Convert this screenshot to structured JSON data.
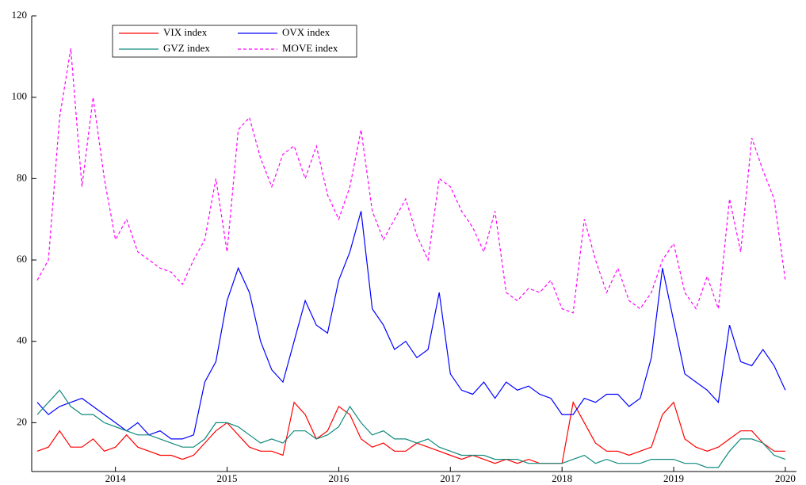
{
  "chart_data": {
    "type": "line",
    "x": [
      2013.3,
      2013.4,
      2013.5,
      2013.6,
      2013.7,
      2013.8,
      2013.9,
      2014.0,
      2014.1,
      2014.2,
      2014.3,
      2014.4,
      2014.5,
      2014.6,
      2014.7,
      2014.8,
      2014.9,
      2015.0,
      2015.1,
      2015.2,
      2015.3,
      2015.4,
      2015.5,
      2015.6,
      2015.7,
      2015.8,
      2015.9,
      2016.0,
      2016.1,
      2016.2,
      2016.3,
      2016.4,
      2016.5,
      2016.6,
      2016.7,
      2016.8,
      2016.9,
      2017.0,
      2017.1,
      2017.2,
      2017.3,
      2017.4,
      2017.5,
      2017.6,
      2017.7,
      2017.8,
      2017.9,
      2018.0,
      2018.1,
      2018.2,
      2018.3,
      2018.4,
      2018.5,
      2018.6,
      2018.7,
      2018.8,
      2018.9,
      2019.0,
      2019.1,
      2019.2,
      2019.3,
      2019.4,
      2019.5,
      2019.6,
      2019.7,
      2019.8,
      2019.9,
      2020.0
    ],
    "series": [
      {
        "name": "VIX index",
        "color": "#ff0000",
        "style": "solid",
        "values": [
          13,
          14,
          18,
          14,
          14,
          16,
          13,
          14,
          17,
          14,
          13,
          12,
          12,
          11,
          12,
          15,
          18,
          20,
          17,
          14,
          13,
          13,
          12,
          25,
          22,
          16,
          18,
          24,
          22,
          16,
          14,
          15,
          13,
          13,
          15,
          14,
          13,
          12,
          11,
          12,
          11,
          10,
          11,
          10,
          11,
          10,
          10,
          10,
          25,
          20,
          15,
          13,
          13,
          12,
          13,
          14,
          22,
          25,
          16,
          14,
          13,
          14,
          16,
          18,
          18,
          15,
          13,
          13
        ]
      },
      {
        "name": "OVX index",
        "color": "#0000ff",
        "style": "solid",
        "values": [
          25,
          22,
          24,
          25,
          26,
          24,
          22,
          20,
          18,
          20,
          17,
          18,
          16,
          16,
          17,
          30,
          35,
          50,
          58,
          52,
          40,
          33,
          30,
          40,
          50,
          44,
          42,
          55,
          62,
          72,
          48,
          44,
          38,
          40,
          36,
          38,
          52,
          32,
          28,
          27,
          30,
          26,
          30,
          28,
          29,
          27,
          26,
          22,
          22,
          26,
          25,
          27,
          27,
          24,
          26,
          36,
          58,
          45,
          32,
          30,
          28,
          25,
          44,
          35,
          34,
          38,
          34,
          28
        ]
      },
      {
        "name": "GVZ index",
        "color": "#0e8a7c",
        "style": "solid",
        "values": [
          22,
          25,
          28,
          24,
          22,
          22,
          20,
          19,
          18,
          17,
          17,
          16,
          15,
          14,
          14,
          16,
          20,
          20,
          19,
          17,
          15,
          16,
          15,
          18,
          18,
          16,
          17,
          19,
          24,
          20,
          17,
          18,
          16,
          16,
          15,
          16,
          14,
          13,
          12,
          12,
          12,
          11,
          11,
          11,
          10,
          10,
          10,
          10,
          11,
          12,
          10,
          11,
          10,
          10,
          10,
          11,
          11,
          11,
          10,
          10,
          9,
          9,
          13,
          16,
          16,
          15,
          12,
          11
        ]
      },
      {
        "name": "MOVE index",
        "color": "#ff00ff",
        "style": "dashed",
        "values": [
          55,
          60,
          95,
          112,
          78,
          100,
          80,
          65,
          70,
          62,
          60,
          58,
          57,
          54,
          60,
          65,
          80,
          62,
          92,
          95,
          85,
          78,
          86,
          88,
          80,
          88,
          76,
          70,
          78,
          92,
          72,
          65,
          70,
          75,
          66,
          60,
          80,
          78,
          72,
          68,
          62,
          72,
          52,
          50,
          53,
          52,
          55,
          48,
          47,
          70,
          60,
          52,
          58,
          50,
          48,
          52,
          60,
          64,
          52,
          48,
          56,
          48,
          75,
          62,
          90,
          82,
          75,
          55
        ]
      }
    ],
    "xlim": [
      2013.25,
      2020.1
    ],
    "xticks": [
      2014,
      2015,
      2016,
      2017,
      2018,
      2019,
      2020
    ],
    "ylim": [
      8,
      120
    ],
    "yticks": [
      20,
      40,
      60,
      80,
      100,
      120
    ]
  }
}
